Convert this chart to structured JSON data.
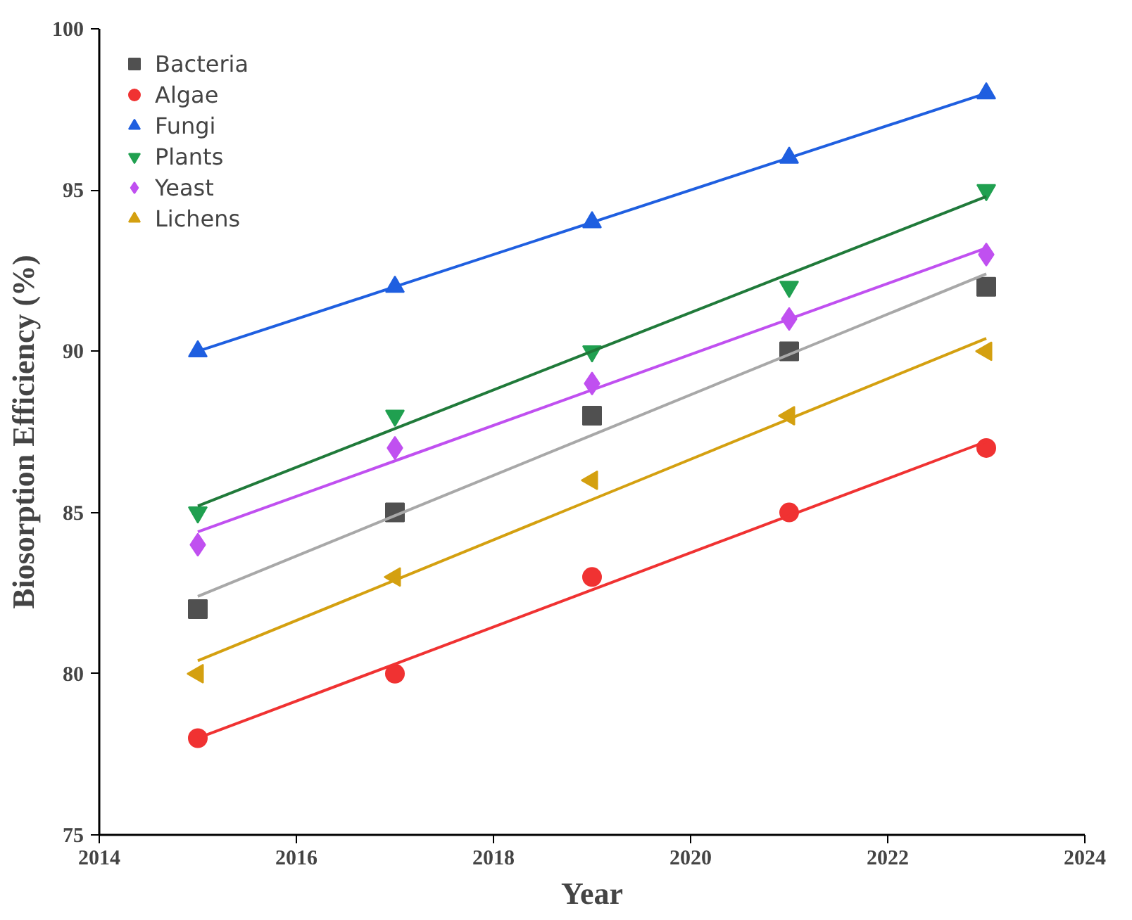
{
  "chart_data": {
    "type": "scatter",
    "xlabel": "Year",
    "ylabel": "Biosorption Efficiency (%)",
    "x": [
      2015,
      2017,
      2019,
      2021,
      2023
    ],
    "xlim": [
      2014,
      2024
    ],
    "xticks": [
      2014,
      2016,
      2018,
      2020,
      2022,
      2024
    ],
    "ylim": [
      75,
      100
    ],
    "yticks": [
      75,
      80,
      85,
      90,
      95,
      100
    ],
    "grid": false,
    "legend": "top left",
    "series": [
      {
        "name": "Bacteria",
        "color": "#505050",
        "marker": "square",
        "values": [
          82,
          85,
          88,
          90,
          92
        ]
      },
      {
        "name": "Algae",
        "color": "#f03232",
        "marker": "circle",
        "values": [
          78,
          80,
          83,
          85,
          87
        ]
      },
      {
        "name": "Fungi",
        "color": "#1f5fe0",
        "marker": "triangle",
        "values": [
          90,
          92,
          94,
          96,
          98
        ]
      },
      {
        "name": "Plants",
        "color": "#20a050",
        "marker": "triangle_down",
        "values": [
          85,
          88,
          90,
          92,
          95
        ]
      },
      {
        "name": "Yeast",
        "color": "#c050f0",
        "marker": "diamond",
        "values": [
          84,
          87,
          89,
          91,
          93
        ]
      },
      {
        "name": "Lichens",
        "color": "#d4a010",
        "marker": "triangle_left",
        "values": [
          80,
          83,
          86,
          88,
          90
        ]
      },
      {
        "type": "line",
        "color": "#a8a8a8",
        "values": [
          82.4,
          84.9,
          87.4,
          89.9,
          92.4
        ]
      },
      {
        "type": "line",
        "color": "#f03232",
        "values": [
          78.0,
          80.3,
          82.6,
          84.9,
          87.2
        ]
      },
      {
        "type": "line",
        "color": "#1f5fe0",
        "values": [
          90,
          92,
          94,
          96,
          98
        ]
      },
      {
        "type": "line",
        "color": "#207a3a",
        "values": [
          85.2,
          87.6,
          90.0,
          92.4,
          94.8
        ]
      },
      {
        "type": "line",
        "color": "#c050f0",
        "values": [
          84.4,
          86.6,
          88.8,
          91.0,
          93.2
        ]
      },
      {
        "type": "line",
        "color": "#d4a010",
        "values": [
          80.4,
          82.9,
          85.4,
          87.9,
          90.4
        ]
      }
    ]
  }
}
